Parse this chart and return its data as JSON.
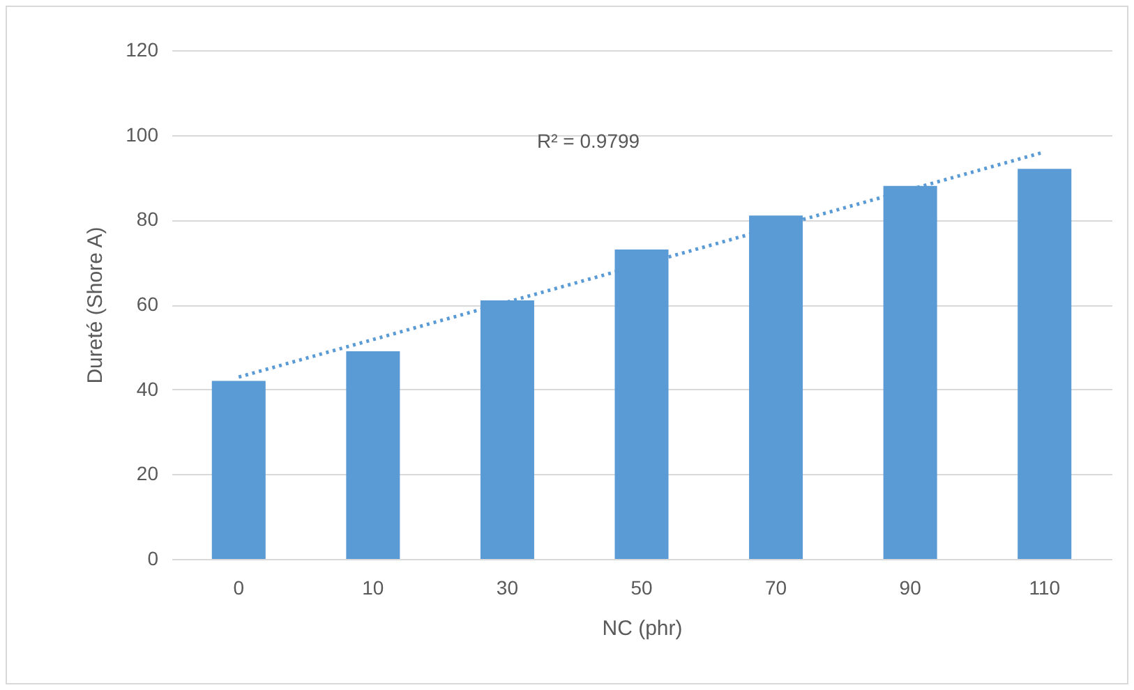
{
  "chart_data": {
    "type": "bar",
    "xlabel": "NC (phr)",
    "ylabel": "Dureté (Shore A)",
    "categories": [
      "0",
      "10",
      "30",
      "50",
      "70",
      "90",
      "110"
    ],
    "series": [
      {
        "color": "#5b9bd5",
        "values": [
          42,
          49,
          61,
          73,
          81,
          88,
          92
        ]
      },
      {
        "type": "line",
        "color": "#5b9bd5",
        "x": [
          "0",
          "110"
        ],
        "values": [
          42.9,
          96
        ],
        "line_style": "dotted"
      }
    ],
    "ylim": [
      0,
      120
    ],
    "yticks": [
      0,
      20,
      40,
      60,
      80,
      100,
      120
    ],
    "grid": "y",
    "annotations": [
      "R² = 0.9799"
    ]
  }
}
